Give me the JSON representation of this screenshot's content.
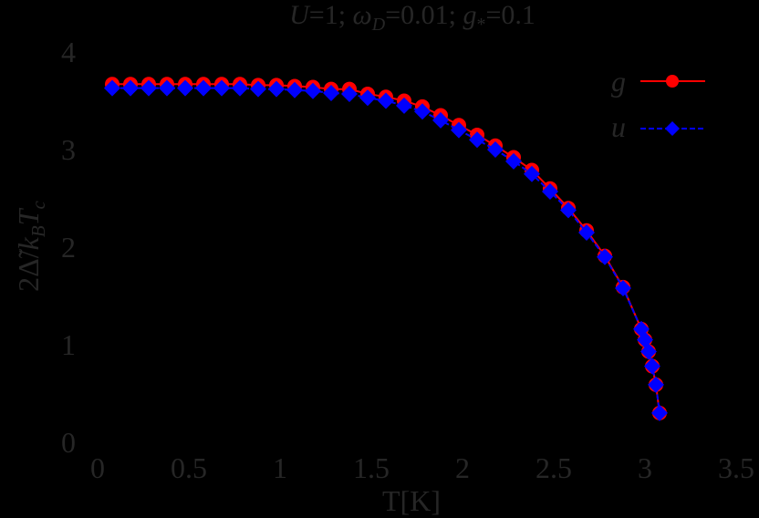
{
  "chart_data": {
    "type": "line",
    "title": "U=1; ωD=0.01; g*=0.1",
    "title_parts": {
      "U": "U",
      "eq1": "=1; ",
      "omega": "ω",
      "omega_sub": "D",
      "eq2": "=0.01; ",
      "g": "g",
      "g_sub": "*",
      "eq3": "=0.1"
    },
    "xlabel": "T[K]",
    "ylabel": "2Δ̃/k_B T_c",
    "ylabel_parts": {
      "two": "2",
      "delta": "Δ̃",
      "slash": "/",
      "k": "k",
      "k_sub": "B",
      "T": "T",
      "T_sub": "c"
    },
    "xlim": [
      0,
      3.5
    ],
    "ylim": [
      0,
      4
    ],
    "xticks": [
      "0",
      "0.5",
      "1",
      "1.5",
      "2",
      "2.5",
      "3",
      "3.5"
    ],
    "yticks": [
      "0",
      "1",
      "2",
      "3",
      "4"
    ],
    "grid": false,
    "legend_position": "upper right",
    "x": [
      0.08,
      0.18,
      0.28,
      0.38,
      0.48,
      0.58,
      0.68,
      0.78,
      0.88,
      0.98,
      1.08,
      1.18,
      1.28,
      1.38,
      1.48,
      1.58,
      1.68,
      1.78,
      1.88,
      1.98,
      2.08,
      2.18,
      2.28,
      2.38,
      2.48,
      2.58,
      2.68,
      2.78,
      2.88,
      2.98,
      3.0,
      3.02,
      3.04,
      3.06,
      3.08
    ],
    "series": [
      {
        "name": "g",
        "color": "#ff0000",
        "marker": "circle",
        "linestyle": "solid",
        "values": [
          3.67,
          3.67,
          3.67,
          3.67,
          3.67,
          3.67,
          3.67,
          3.67,
          3.66,
          3.66,
          3.65,
          3.64,
          3.62,
          3.62,
          3.57,
          3.54,
          3.5,
          3.44,
          3.35,
          3.25,
          3.15,
          3.04,
          2.92,
          2.79,
          2.6,
          2.4,
          2.17,
          1.91,
          1.59,
          1.16,
          1.05,
          0.93,
          0.78,
          0.59,
          0.3
        ]
      },
      {
        "name": "u",
        "color": "#0000ff",
        "marker": "diamond",
        "linestyle": "dashed",
        "values": [
          3.63,
          3.63,
          3.63,
          3.63,
          3.63,
          3.63,
          3.63,
          3.63,
          3.62,
          3.62,
          3.61,
          3.6,
          3.58,
          3.57,
          3.53,
          3.5,
          3.45,
          3.39,
          3.3,
          3.2,
          3.1,
          3.0,
          2.88,
          2.75,
          2.57,
          2.38,
          2.15,
          1.9,
          1.58,
          1.16,
          1.05,
          0.93,
          0.78,
          0.59,
          0.3
        ]
      }
    ]
  },
  "colors": {
    "background": "#000000",
    "text": "#262626",
    "g": "#ff0000",
    "u": "#0000ff"
  }
}
